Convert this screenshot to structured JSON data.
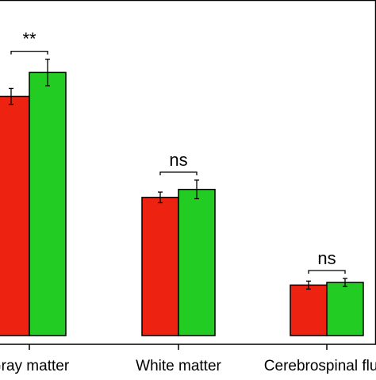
{
  "chart_data": {
    "type": "bar",
    "title": "",
    "xlabel": "",
    "ylabel": "",
    "ylim": [
      0,
      100
    ],
    "categories": [
      "Gray matter",
      "White matter",
      "Cerebrospinal fluid"
    ],
    "series": [
      {
        "color": "#ee2211",
        "values": [
          90,
          52,
          19
        ],
        "errors": [
          3,
          2,
          1.5
        ]
      },
      {
        "color": "#22cc22",
        "values": [
          99,
          55,
          20
        ],
        "errors": [
          5,
          3.5,
          1.5
        ]
      }
    ],
    "significance": [
      "**",
      "ns",
      "ns"
    ],
    "grid": false,
    "legend": "none"
  }
}
